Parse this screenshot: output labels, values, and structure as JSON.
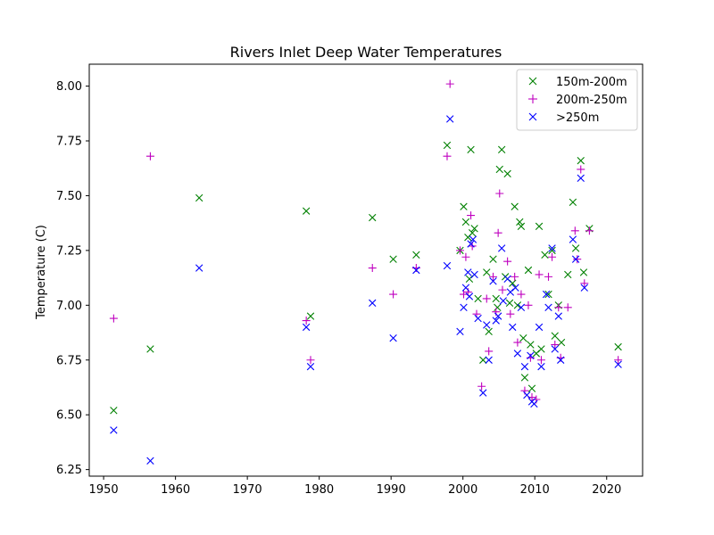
{
  "chart_data": {
    "type": "scatter",
    "title": "Rivers Inlet Deep Water Temperatures",
    "xlabel": "",
    "ylabel": "Temperature (C)",
    "xlim": [
      1948,
      2025
    ],
    "ylim": [
      6.22,
      8.1
    ],
    "xticks": [
      1950,
      1960,
      1970,
      1980,
      1990,
      2000,
      2010,
      2020
    ],
    "yticks": [
      6.25,
      6.5,
      6.75,
      7.0,
      7.25,
      7.5,
      7.75,
      8.0
    ],
    "ytick_labels": [
      "6.25",
      "6.50",
      "6.75",
      "7.00",
      "7.25",
      "7.50",
      "7.75",
      "8.00"
    ],
    "grid": false,
    "legend_position": "top-right",
    "series": [
      {
        "name": "150m-200m",
        "marker": "x",
        "color": "#008000",
        "points": [
          [
            1951.4,
            6.52
          ],
          [
            1956.5,
            6.8
          ],
          [
            1963.3,
            7.49
          ],
          [
            1978.2,
            7.43
          ],
          [
            1978.8,
            6.95
          ],
          [
            1987.4,
            7.4
          ],
          [
            1990.3,
            7.21
          ],
          [
            1993.5,
            7.23
          ],
          [
            1997.8,
            7.73
          ],
          [
            1999.6,
            7.25
          ],
          [
            2000.1,
            7.45
          ],
          [
            2000.4,
            7.38
          ],
          [
            2000.7,
            7.31
          ],
          [
            2000.9,
            7.12
          ],
          [
            2001.1,
            7.71
          ],
          [
            2001.3,
            7.33
          ],
          [
            2001.6,
            7.35
          ],
          [
            2002.1,
            7.03
          ],
          [
            2002.8,
            6.75
          ],
          [
            2003.3,
            7.15
          ],
          [
            2003.6,
            6.88
          ],
          [
            2004.2,
            7.21
          ],
          [
            2004.6,
            7.03
          ],
          [
            2004.8,
            6.99
          ],
          [
            2005.1,
            7.62
          ],
          [
            2005.4,
            7.71
          ],
          [
            2005.9,
            7.13
          ],
          [
            2006.2,
            7.6
          ],
          [
            2006.5,
            7.01
          ],
          [
            2006.9,
            7.1
          ],
          [
            2007.2,
            7.45
          ],
          [
            2007.6,
            7.0
          ],
          [
            2007.9,
            7.38
          ],
          [
            2008.1,
            7.36
          ],
          [
            2008.4,
            6.85
          ],
          [
            2008.6,
            6.67
          ],
          [
            2009.1,
            7.16
          ],
          [
            2009.4,
            6.82
          ],
          [
            2009.6,
            6.62
          ],
          [
            2010.2,
            6.78
          ],
          [
            2010.6,
            7.36
          ],
          [
            2010.9,
            6.8
          ],
          [
            2011.4,
            7.23
          ],
          [
            2011.9,
            7.05
          ],
          [
            2012.4,
            7.25
          ],
          [
            2012.8,
            6.86
          ],
          [
            2013.3,
            7.0
          ],
          [
            2013.7,
            6.83
          ],
          [
            2014.6,
            7.14
          ],
          [
            2015.3,
            7.47
          ],
          [
            2015.7,
            7.26
          ],
          [
            2016.4,
            7.66
          ],
          [
            2016.8,
            7.15
          ],
          [
            2017.6,
            7.35
          ],
          [
            2021.6,
            6.81
          ]
        ]
      },
      {
        "name": "200m-250m",
        "marker": "+",
        "color": "#bf00bf",
        "points": [
          [
            1951.4,
            6.94
          ],
          [
            1956.5,
            7.68
          ],
          [
            1978.2,
            6.93
          ],
          [
            1978.8,
            6.75
          ],
          [
            1987.4,
            7.17
          ],
          [
            1990.3,
            7.05
          ],
          [
            1993.5,
            7.17
          ],
          [
            1997.8,
            7.68
          ],
          [
            1998.2,
            8.01
          ],
          [
            1999.6,
            7.25
          ],
          [
            2000.1,
            7.05
          ],
          [
            2000.4,
            7.22
          ],
          [
            2000.7,
            7.06
          ],
          [
            2001.1,
            7.41
          ],
          [
            2001.3,
            7.27
          ],
          [
            2001.9,
            6.96
          ],
          [
            2002.6,
            6.63
          ],
          [
            2003.3,
            7.03
          ],
          [
            2003.6,
            6.79
          ],
          [
            2004.2,
            7.13
          ],
          [
            2004.6,
            6.97
          ],
          [
            2004.9,
            7.33
          ],
          [
            2005.1,
            7.51
          ],
          [
            2005.5,
            7.07
          ],
          [
            2006.2,
            7.2
          ],
          [
            2006.6,
            6.96
          ],
          [
            2007.2,
            7.13
          ],
          [
            2007.6,
            6.83
          ],
          [
            2008.1,
            7.05
          ],
          [
            2008.6,
            6.61
          ],
          [
            2009.1,
            7.0
          ],
          [
            2009.4,
            6.76
          ],
          [
            2009.6,
            6.58
          ],
          [
            2010.2,
            6.57
          ],
          [
            2010.6,
            7.14
          ],
          [
            2010.9,
            6.75
          ],
          [
            2011.9,
            7.13
          ],
          [
            2012.4,
            7.22
          ],
          [
            2012.8,
            6.82
          ],
          [
            2013.3,
            6.99
          ],
          [
            2013.6,
            6.76
          ],
          [
            2014.6,
            6.99
          ],
          [
            2015.6,
            7.34
          ],
          [
            2015.9,
            7.21
          ],
          [
            2016.4,
            7.62
          ],
          [
            2016.9,
            7.1
          ],
          [
            2017.6,
            7.34
          ],
          [
            2021.6,
            6.75
          ]
        ]
      },
      {
        "name": ">250m",
        "marker": "x",
        "color": "#0000ff",
        "points": [
          [
            1951.4,
            6.43
          ],
          [
            1956.5,
            6.29
          ],
          [
            1963.3,
            7.17
          ],
          [
            1978.2,
            6.9
          ],
          [
            1978.8,
            6.72
          ],
          [
            1987.4,
            7.01
          ],
          [
            1990.3,
            6.85
          ],
          [
            1993.5,
            7.16
          ],
          [
            1997.8,
            7.18
          ],
          [
            1998.2,
            7.85
          ],
          [
            1999.6,
            6.88
          ],
          [
            2000.1,
            6.99
          ],
          [
            2000.4,
            7.08
          ],
          [
            2000.7,
            7.15
          ],
          [
            2000.9,
            7.04
          ],
          [
            2001.1,
            7.28
          ],
          [
            2001.4,
            7.3
          ],
          [
            2001.6,
            7.14
          ],
          [
            2002.1,
            6.94
          ],
          [
            2002.8,
            6.6
          ],
          [
            2003.3,
            6.91
          ],
          [
            2003.6,
            6.75
          ],
          [
            2004.2,
            7.11
          ],
          [
            2004.6,
            6.93
          ],
          [
            2004.9,
            6.95
          ],
          [
            2005.4,
            7.26
          ],
          [
            2005.6,
            7.02
          ],
          [
            2006.2,
            7.12
          ],
          [
            2006.6,
            7.06
          ],
          [
            2006.9,
            6.9
          ],
          [
            2007.3,
            7.08
          ],
          [
            2007.6,
            6.78
          ],
          [
            2008.1,
            6.99
          ],
          [
            2008.6,
            6.72
          ],
          [
            2008.9,
            6.59
          ],
          [
            2009.4,
            6.77
          ],
          [
            2009.6,
            6.56
          ],
          [
            2009.9,
            6.55
          ],
          [
            2010.6,
            6.9
          ],
          [
            2010.9,
            6.72
          ],
          [
            2011.6,
            7.05
          ],
          [
            2011.9,
            6.99
          ],
          [
            2012.4,
            7.26
          ],
          [
            2012.8,
            6.8
          ],
          [
            2013.3,
            6.95
          ],
          [
            2013.6,
            6.75
          ],
          [
            2015.3,
            7.3
          ],
          [
            2015.7,
            7.21
          ],
          [
            2016.4,
            7.58
          ],
          [
            2016.9,
            7.08
          ],
          [
            2021.6,
            6.73
          ]
        ]
      }
    ]
  }
}
